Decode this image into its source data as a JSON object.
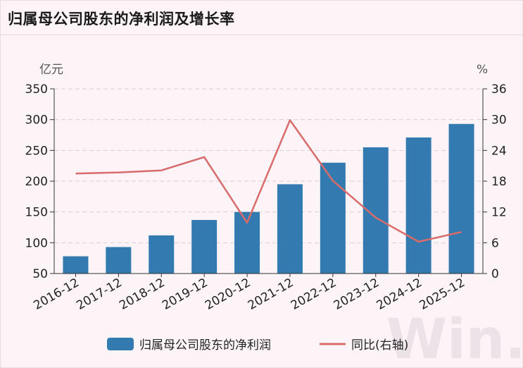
{
  "title": "归属母公司股东的净利润及增长率",
  "watermark": "Win.d",
  "colors": {
    "bar": "#337ab0",
    "line": "#d96b6b",
    "grid": "#d8cdd3",
    "axis": "#333333"
  },
  "chart_data": {
    "type": "bar",
    "categories": [
      "2016-12",
      "2017-12",
      "2018-12",
      "2019-12",
      "2020-12",
      "2021-12",
      "2022-12",
      "2023-12",
      "2024-12",
      "2025-12"
    ],
    "series": [
      {
        "name": "归属母公司股东的净利润",
        "type": "bar",
        "axis": "left",
        "values": [
          78,
          93,
          112,
          137,
          150,
          195,
          230,
          255,
          271,
          293
        ]
      },
      {
        "name": "同比(右轴)",
        "type": "line",
        "axis": "right",
        "values": [
          19.5,
          19.7,
          20.1,
          22.7,
          9.9,
          29.9,
          18.1,
          10.9,
          6.2,
          8.1
        ]
      }
    ],
    "left_axis": {
      "unit": "亿元",
      "ylim": [
        50,
        350
      ],
      "ticks": [
        "50",
        "100",
        "150",
        "200",
        "250",
        "300",
        "350"
      ]
    },
    "right_axis": {
      "unit": "%",
      "ylim": [
        0,
        36
      ],
      "ticks": [
        "0",
        "6",
        "12",
        "18",
        "24",
        "30",
        "36"
      ]
    },
    "grid": true,
    "legend_position": "bottom"
  }
}
